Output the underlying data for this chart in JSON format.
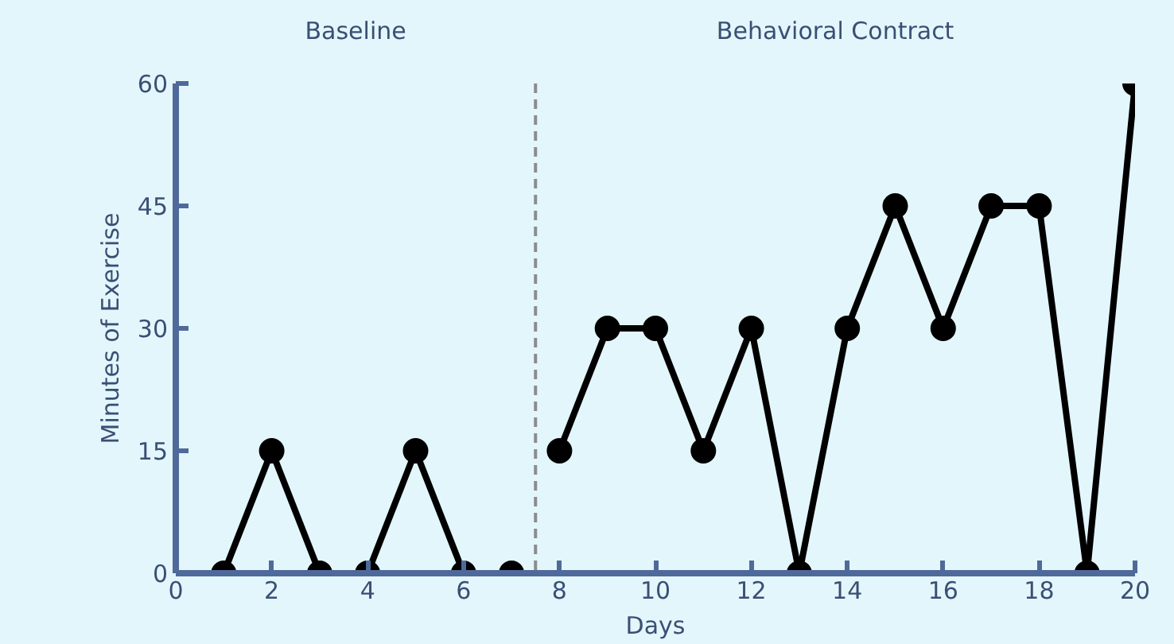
{
  "chart_data": {
    "type": "line",
    "xlabel": "Days",
    "ylabel": "Minutes of Exercise",
    "xlim": [
      0,
      20
    ],
    "ylim": [
      0,
      60
    ],
    "xticks": [
      0,
      2,
      4,
      6,
      8,
      10,
      12,
      14,
      16,
      18,
      20
    ],
    "yticks": [
      0,
      15,
      30,
      45,
      60
    ],
    "marker": "circle",
    "grid": false,
    "series": [
      {
        "color": "#000000",
        "x": [
          1,
          2,
          3,
          4,
          5,
          6
        ],
        "values": [
          0,
          15,
          0,
          0,
          15,
          0
        ]
      },
      {
        "type": "scatter",
        "color": "#000000",
        "x": [
          7
        ],
        "values": [
          0
        ]
      },
      {
        "color": "#000000",
        "x": [
          8,
          9,
          10,
          11,
          12,
          13,
          14,
          15,
          16,
          17,
          18,
          19,
          20
        ],
        "values": [
          15,
          30,
          30,
          15,
          30,
          0,
          30,
          45,
          30,
          45,
          45,
          0,
          60
        ]
      }
    ],
    "ref_lines": [
      {
        "axis": "x",
        "value": 7.5,
        "color": "#8c8c8c",
        "line_style": "dashed"
      }
    ],
    "annotations": [
      "Baseline",
      "Behavioral Contract"
    ]
  }
}
